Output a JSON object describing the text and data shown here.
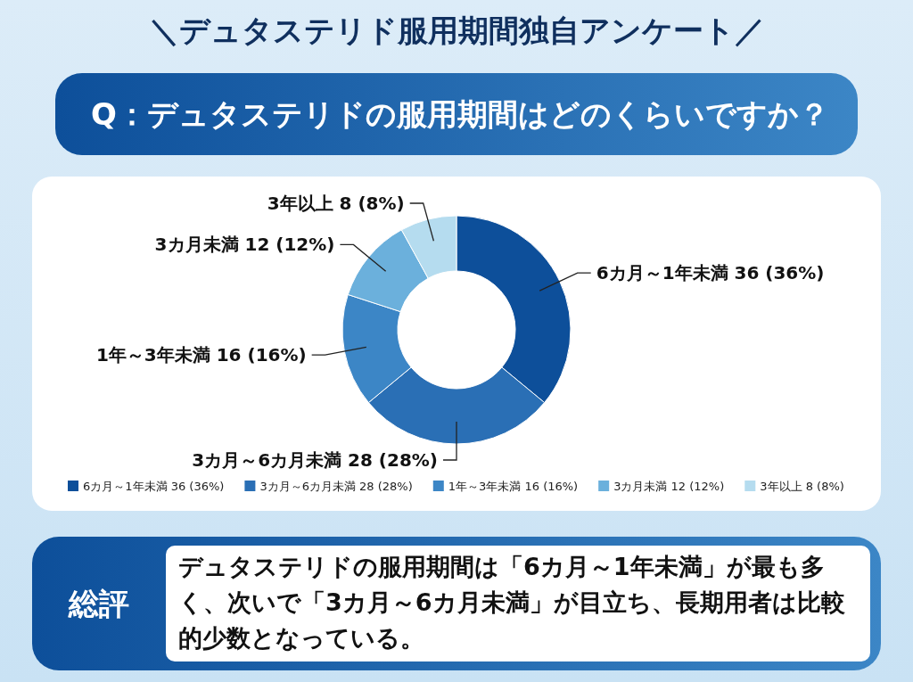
{
  "chart_data": {
    "type": "donut",
    "title": "＼デュタステリド服用期間独自アンケート／",
    "subtitle": "Q：デュタステリドの服用期間はどのくらいですか？",
    "categories": [
      "6カ月～1年未満",
      "3カ月～6カ月未満",
      "1年～3年未満",
      "3カ月未満",
      "3年以上"
    ],
    "values": [
      36,
      28,
      16,
      12,
      8
    ],
    "value_labels": [
      "36 (36%)",
      "28 (28%)",
      "16 (16%)",
      "12 (12%)",
      "8 (8%)"
    ],
    "colors": [
      "#0d4f9a",
      "#2a6fb5",
      "#3c86c6",
      "#6bb0dc",
      "#b5dcef"
    ],
    "legend": "bottom",
    "annotations": [
      "総評",
      "デュタステリドの服用期間は「6カ月～1年未満」が最も多く、次いで「3カ月～6カ月未満」が目立ち、長期用者は比較的少数となっている。"
    ]
  }
}
